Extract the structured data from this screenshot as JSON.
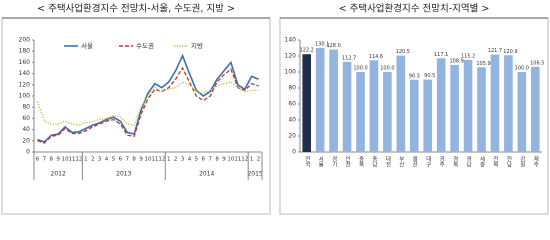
{
  "chart_data": [
    {
      "type": "line",
      "title": "< 주택사업환경지수 전망치-서울, 수도권, 지방 >",
      "categories": [
        "6",
        "7",
        "8",
        "9",
        "10",
        "11",
        "12",
        "1",
        "2",
        "3",
        "4",
        "5",
        "6",
        "7",
        "8",
        "9",
        "10",
        "11",
        "12",
        "1",
        "2",
        "3",
        "4",
        "5",
        "6",
        "7",
        "8",
        "9",
        "10",
        "11",
        "12",
        "1",
        "2"
      ],
      "x_groups": [
        "2012",
        "2013",
        "2014",
        "2015"
      ],
      "series": [
        {
          "name": "서울",
          "color": "#3a6fb5",
          "dash": "solid",
          "values": [
            22,
            18,
            30,
            32,
            45,
            35,
            36,
            42,
            48,
            52,
            58,
            62,
            55,
            35,
            32,
            75,
            105,
            122,
            115,
            125,
            145,
            172,
            140,
            110,
            100,
            108,
            130,
            145,
            160,
            120,
            112,
            135,
            130
          ]
        },
        {
          "name": "수도권",
          "color": "#c0392b",
          "dash": "dashed",
          "values": [
            20,
            16,
            28,
            30,
            42,
            33,
            33,
            38,
            45,
            50,
            55,
            58,
            50,
            30,
            28,
            68,
            95,
            112,
            108,
            115,
            130,
            150,
            125,
            100,
            92,
            100,
            125,
            138,
            148,
            115,
            110,
            122,
            118
          ]
        },
        {
          "name": "지방",
          "color": "#b5c235",
          "dash": "dotted",
          "values": [
            90,
            55,
            50,
            50,
            55,
            50,
            48,
            52,
            55,
            58,
            60,
            65,
            62,
            50,
            48,
            80,
            100,
            115,
            108,
            112,
            115,
            125,
            120,
            108,
            105,
            110,
            118,
            122,
            125,
            115,
            108,
            110,
            110
          ]
        }
      ],
      "ylim": [
        0,
        200
      ],
      "yticks": [
        0,
        20,
        40,
        60,
        80,
        100,
        120,
        140,
        160,
        180,
        200
      ],
      "grid": false,
      "legend": "top"
    },
    {
      "type": "bar",
      "title": "< 주택사업환경지수 전망치-지역별 >",
      "categories": [
        "전국",
        "서울",
        "경기",
        "인천",
        "충북",
        "충남",
        "대전",
        "부산",
        "울산",
        "대구",
        "광주",
        "경북",
        "경남",
        "세종",
        "전북",
        "전남",
        "강원",
        "제주"
      ],
      "values": [
        122.2,
        130.1,
        128.0,
        112.7,
        100.0,
        114.6,
        100.0,
        120.5,
        90.3,
        90.5,
        117.1,
        108.9,
        115.2,
        105.9,
        121.7,
        120.9,
        100.0,
        106.5
      ],
      "value_labels": [
        "122.2",
        "130.1",
        "128.0",
        "112.7",
        "100.0",
        "114.6",
        "100.0",
        "120.5",
        "90.3",
        "90.5",
        "117.1",
        "108.9",
        "115.2",
        "105.9",
        "121.7",
        "120.9",
        "100.0",
        "106.5"
      ],
      "colors": [
        "#1f2f4d",
        "#92b4de",
        "#92b4de",
        "#92b4de",
        "#92b4de",
        "#92b4de",
        "#92b4de",
        "#92b4de",
        "#92b4de",
        "#92b4de",
        "#92b4de",
        "#92b4de",
        "#92b4de",
        "#92b4de",
        "#92b4de",
        "#92b4de",
        "#92b4de",
        "#92b4de"
      ],
      "ylim": [
        0,
        140
      ],
      "yticks": [
        0,
        20,
        40,
        60,
        80,
        100,
        120,
        140
      ],
      "grid": false
    }
  ]
}
